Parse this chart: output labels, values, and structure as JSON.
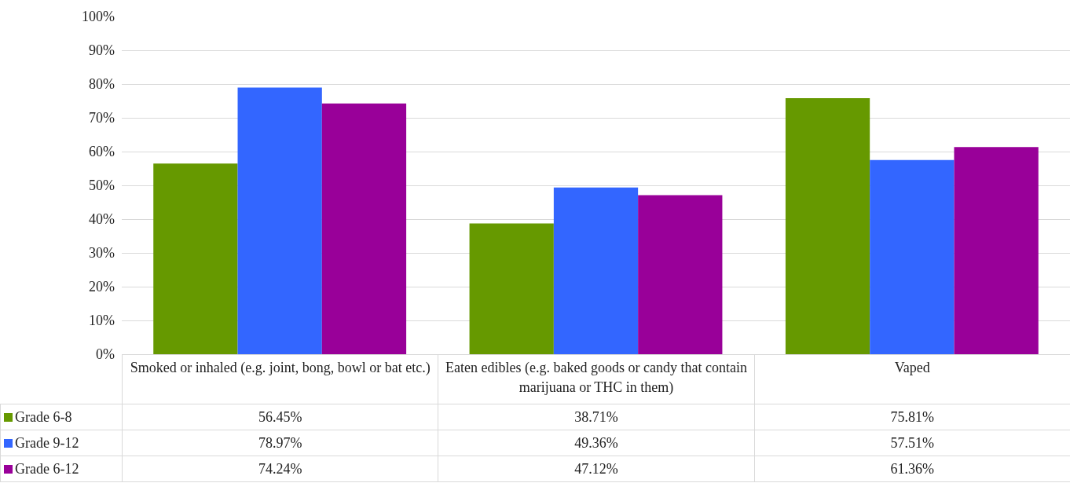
{
  "chart_data": {
    "type": "bar",
    "categories": [
      "Smoked or inhaled (e.g. joint, bong, bowl or bat etc.)",
      "Eaten edibles (e.g. baked goods or candy that contain marijuana or THC in them)",
      "Vaped"
    ],
    "series": [
      {
        "name": "Grade  6-8",
        "color": "#669900",
        "values": [
          56.45,
          38.71,
          75.81
        ],
        "value_labels": [
          "56.45%",
          "38.71%",
          "75.81%"
        ]
      },
      {
        "name": "Grade  9-12",
        "color": "#3366ff",
        "values": [
          78.97,
          49.36,
          57.51
        ],
        "value_labels": [
          "78.97%",
          "49.36%",
          "57.51%"
        ]
      },
      {
        "name": "Grade  6-12",
        "color": "#990099",
        "values": [
          74.24,
          47.12,
          61.36
        ],
        "value_labels": [
          "74.24%",
          "47.12%",
          "61.36%"
        ]
      }
    ],
    "ylim": [
      0,
      100
    ],
    "yticks": [
      {
        "value": 0,
        "label": "0%"
      },
      {
        "value": 10,
        "label": "10%"
      },
      {
        "value": 20,
        "label": "20%"
      },
      {
        "value": 30,
        "label": "30%"
      },
      {
        "value": 40,
        "label": "40%"
      },
      {
        "value": 50,
        "label": "50%"
      },
      {
        "value": 60,
        "label": "60%"
      },
      {
        "value": 70,
        "label": "70%"
      },
      {
        "value": 80,
        "label": "80%"
      },
      {
        "value": 90,
        "label": "90%"
      },
      {
        "value": 100,
        "label": "100%"
      }
    ],
    "grid": "y",
    "legend": "bottom"
  }
}
